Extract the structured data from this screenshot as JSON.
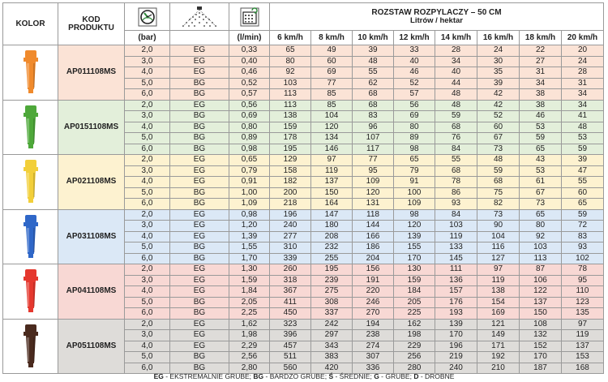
{
  "header": {
    "kolor": "KOLOR",
    "kod_line1": "KOD",
    "kod_line2": "PRODUKTU",
    "pressure_unit": "(bar)",
    "flow_unit": "(l/min)",
    "rozstaw_title": "ROZSTAW ROZPYLACZY – 50 CM",
    "rozstaw_sub": "Litrów / hektar",
    "speeds": [
      "6 km/h",
      "8 km/h",
      "10 km/h",
      "12 km/h",
      "14 km/h",
      "16 km/h",
      "18 km/h",
      "20 km/h"
    ]
  },
  "groups": [
    {
      "code": "AP011108MS",
      "nozzle_color": "#f08a2c",
      "tint": "#fbe3d6",
      "rows": [
        {
          "bar": "2,0",
          "drop": "EG",
          "flow": "0,33",
          "rates": [
            "65",
            "49",
            "39",
            "33",
            "28",
            "24",
            "22",
            "20"
          ]
        },
        {
          "bar": "3,0",
          "drop": "EG",
          "flow": "0,40",
          "rates": [
            "80",
            "60",
            "48",
            "40",
            "34",
            "30",
            "27",
            "24"
          ]
        },
        {
          "bar": "4,0",
          "drop": "EG",
          "flow": "0,46",
          "rates": [
            "92",
            "69",
            "55",
            "46",
            "40",
            "35",
            "31",
            "28"
          ]
        },
        {
          "bar": "5,0",
          "drop": "BG",
          "flow": "0,52",
          "rates": [
            "103",
            "77",
            "62",
            "52",
            "44",
            "39",
            "34",
            "31"
          ]
        },
        {
          "bar": "6,0",
          "drop": "BG",
          "flow": "0,57",
          "rates": [
            "113",
            "85",
            "68",
            "57",
            "48",
            "42",
            "38",
            "34"
          ]
        }
      ]
    },
    {
      "code": "AP0151108MS",
      "nozzle_color": "#4ea83a",
      "tint": "#e3efda",
      "rows": [
        {
          "bar": "2,0",
          "drop": "EG",
          "flow": "0,56",
          "rates": [
            "113",
            "85",
            "68",
            "56",
            "48",
            "42",
            "38",
            "34"
          ]
        },
        {
          "bar": "3,0",
          "drop": "BG",
          "flow": "0,69",
          "rates": [
            "138",
            "104",
            "83",
            "69",
            "59",
            "52",
            "46",
            "41"
          ]
        },
        {
          "bar": "4,0",
          "drop": "BG",
          "flow": "0,80",
          "rates": [
            "159",
            "120",
            "96",
            "80",
            "68",
            "60",
            "53",
            "48"
          ]
        },
        {
          "bar": "5,0",
          "drop": "BG",
          "flow": "0,89",
          "rates": [
            "178",
            "134",
            "107",
            "89",
            "76",
            "67",
            "59",
            "53"
          ]
        },
        {
          "bar": "6,0",
          "drop": "BG",
          "flow": "0,98",
          "rates": [
            "195",
            "146",
            "117",
            "98",
            "84",
            "73",
            "65",
            "59"
          ]
        }
      ]
    },
    {
      "code": "AP021108MS",
      "nozzle_color": "#f2cf3a",
      "tint": "#fdf2d0",
      "rows": [
        {
          "bar": "2,0",
          "drop": "EG",
          "flow": "0,65",
          "rates": [
            "129",
            "97",
            "77",
            "65",
            "55",
            "48",
            "43",
            "39"
          ]
        },
        {
          "bar": "3,0",
          "drop": "EG",
          "flow": "0,79",
          "rates": [
            "158",
            "119",
            "95",
            "79",
            "68",
            "59",
            "53",
            "47"
          ]
        },
        {
          "bar": "4,0",
          "drop": "EG",
          "flow": "0,91",
          "rates": [
            "182",
            "137",
            "109",
            "91",
            "78",
            "68",
            "61",
            "55"
          ]
        },
        {
          "bar": "5,0",
          "drop": "BG",
          "flow": "1,00",
          "rates": [
            "200",
            "150",
            "120",
            "100",
            "86",
            "75",
            "67",
            "60"
          ]
        },
        {
          "bar": "6,0",
          "drop": "BG",
          "flow": "1,09",
          "rates": [
            "218",
            "164",
            "131",
            "109",
            "93",
            "82",
            "73",
            "65"
          ]
        }
      ]
    },
    {
      "code": "AP031108MS",
      "nozzle_color": "#2f67c8",
      "tint": "#dbe8f6",
      "rows": [
        {
          "bar": "2,0",
          "drop": "EG",
          "flow": "0,98",
          "rates": [
            "196",
            "147",
            "118",
            "98",
            "84",
            "73",
            "65",
            "59"
          ]
        },
        {
          "bar": "3,0",
          "drop": "EG",
          "flow": "1,20",
          "rates": [
            "240",
            "180",
            "144",
            "120",
            "103",
            "90",
            "80",
            "72"
          ]
        },
        {
          "bar": "4,0",
          "drop": "EG",
          "flow": "1,39",
          "rates": [
            "277",
            "208",
            "166",
            "139",
            "119",
            "104",
            "92",
            "83"
          ]
        },
        {
          "bar": "5,0",
          "drop": "BG",
          "flow": "1,55",
          "rates": [
            "310",
            "232",
            "186",
            "155",
            "133",
            "116",
            "103",
            "93"
          ]
        },
        {
          "bar": "6,0",
          "drop": "BG",
          "flow": "1,70",
          "rates": [
            "339",
            "255",
            "204",
            "170",
            "145",
            "127",
            "113",
            "102"
          ]
        }
      ]
    },
    {
      "code": "AP041108MS",
      "nozzle_color": "#e5382e",
      "tint": "#f8d8d4",
      "rows": [
        {
          "bar": "2,0",
          "drop": "EG",
          "flow": "1,30",
          "rates": [
            "260",
            "195",
            "156",
            "130",
            "111",
            "97",
            "87",
            "78"
          ]
        },
        {
          "bar": "3,0",
          "drop": "EG",
          "flow": "1,59",
          "rates": [
            "318",
            "239",
            "191",
            "159",
            "136",
            "119",
            "106",
            "95"
          ]
        },
        {
          "bar": "4,0",
          "drop": "EG",
          "flow": "1,84",
          "rates": [
            "367",
            "275",
            "220",
            "184",
            "157",
            "138",
            "122",
            "110"
          ]
        },
        {
          "bar": "5,0",
          "drop": "BG",
          "flow": "2,05",
          "rates": [
            "411",
            "308",
            "246",
            "205",
            "176",
            "154",
            "137",
            "123"
          ]
        },
        {
          "bar": "6,0",
          "drop": "BG",
          "flow": "2,25",
          "rates": [
            "450",
            "337",
            "270",
            "225",
            "193",
            "169",
            "150",
            "135"
          ]
        }
      ]
    },
    {
      "code": "AP051108MS",
      "nozzle_color": "#4a2a1e",
      "tint": "#dedcd9",
      "rows": [
        {
          "bar": "2,0",
          "drop": "EG",
          "flow": "1,62",
          "rates": [
            "323",
            "242",
            "194",
            "162",
            "139",
            "121",
            "108",
            "97"
          ]
        },
        {
          "bar": "3,0",
          "drop": "EG",
          "flow": "1,98",
          "rates": [
            "396",
            "297",
            "238",
            "198",
            "170",
            "149",
            "132",
            "119"
          ]
        },
        {
          "bar": "4,0",
          "drop": "EG",
          "flow": "2,29",
          "rates": [
            "457",
            "343",
            "274",
            "229",
            "196",
            "171",
            "152",
            "137"
          ]
        },
        {
          "bar": "5,0",
          "drop": "BG",
          "flow": "2,56",
          "rates": [
            "511",
            "383",
            "307",
            "256",
            "219",
            "192",
            "170",
            "153"
          ]
        },
        {
          "bar": "6,0",
          "drop": "BG",
          "flow": "2,80",
          "rates": [
            "560",
            "420",
            "336",
            "280",
            "240",
            "210",
            "187",
            "168"
          ]
        }
      ]
    }
  ],
  "legend": [
    {
      "key": "EG",
      "text": " - EKSTREMALNIE GRUBE; "
    },
    {
      "key": "BG",
      "text": " - BARDZO GRUBE; "
    },
    {
      "key": "Ś",
      "text": " - ŚREDNIE; "
    },
    {
      "key": "G",
      "text": " - GRUBE; "
    },
    {
      "key": "D",
      "text": " - DROBNE"
    }
  ],
  "icons": {
    "pressure": "pressure-gauge-icon",
    "spray": "spray-angle-icon",
    "flow": "flow-meter-icon"
  }
}
